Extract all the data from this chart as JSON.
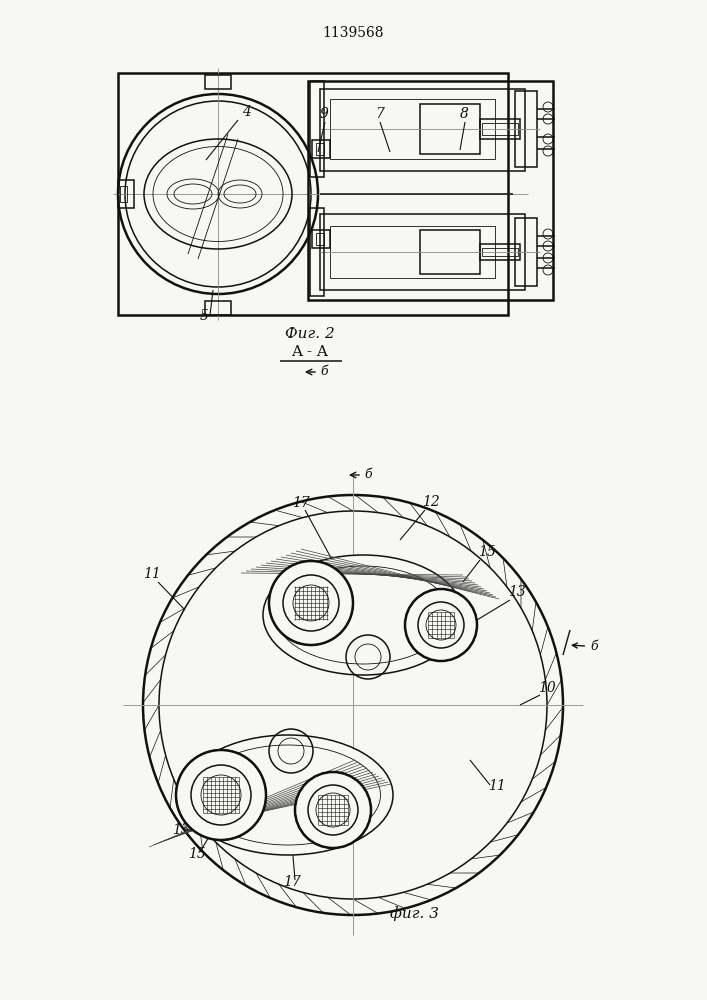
{
  "title": "1139568",
  "bg_color": "#f7f7f3",
  "line_color": "#111111",
  "fig2_label": "Фиг. 2",
  "fig3_label": "фиг. 3",
  "section_label": "A - A"
}
